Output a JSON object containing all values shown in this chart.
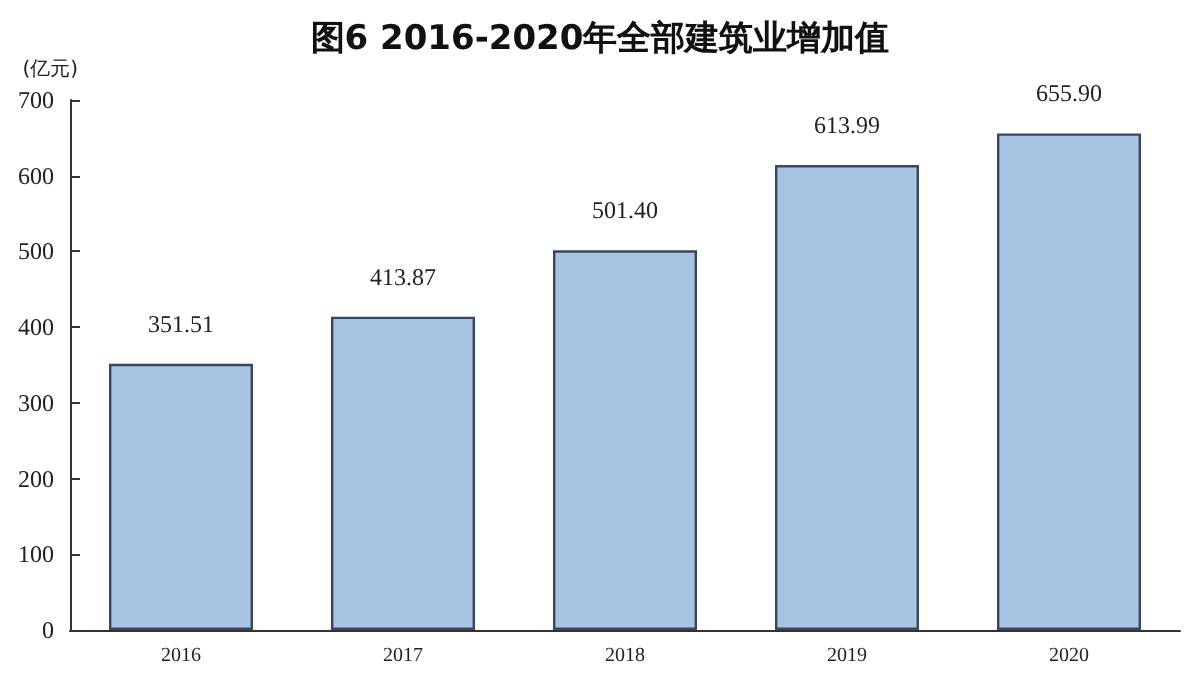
{
  "chart_data": {
    "type": "bar",
    "title": "图6 2016-2020年全部建筑业增加值",
    "ylabel": "(亿元)",
    "categories": [
      "2016",
      "2017",
      "2018",
      "2019",
      "2020"
    ],
    "values": [
      351.51,
      413.87,
      501.4,
      613.99,
      655.9
    ],
    "value_labels": [
      "351.51",
      "413.87",
      "501.40",
      "613.99",
      "655.90"
    ],
    "color": "#a9c3e3",
    "ylim": [
      0,
      700
    ],
    "yticks": [
      0,
      100,
      200,
      300,
      400,
      500,
      600,
      700
    ],
    "grid": false
  }
}
